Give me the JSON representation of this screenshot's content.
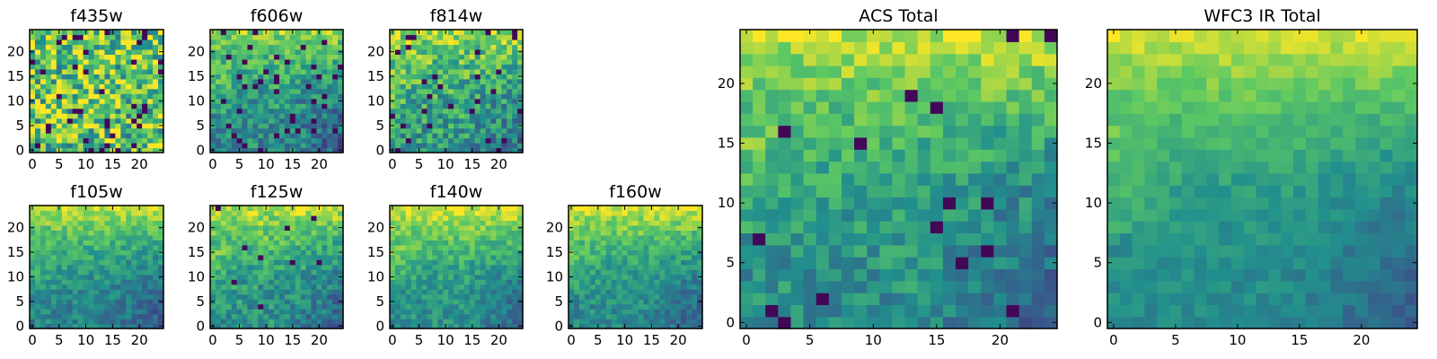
{
  "figure": {
    "colormap": [
      "#440154",
      "#3b528b",
      "#21908d",
      "#5dc963",
      "#fde725"
    ]
  },
  "chart_data": [
    {
      "id": "f435w",
      "type": "heatmap",
      "title": "f435w",
      "grid": [
        25,
        25
      ],
      "xlim": [
        0,
        24
      ],
      "ylim": [
        0,
        24
      ],
      "xticks": [
        "0",
        "5",
        "10",
        "15",
        "20"
      ],
      "yticks": [
        "0",
        "5",
        "10",
        "15",
        "20"
      ],
      "pattern": "noisy",
      "base": 0.72,
      "top_boost": 0.05,
      "noise": 0.35,
      "dark_fraction": 0.06,
      "seed": 11
    },
    {
      "id": "f606w",
      "type": "heatmap",
      "title": "f606w",
      "grid": [
        25,
        25
      ],
      "xlim": [
        0,
        24
      ],
      "ylim": [
        0,
        24
      ],
      "xticks": [
        "0",
        "5",
        "10",
        "15",
        "20"
      ],
      "yticks": [
        "0",
        "5",
        "10",
        "15",
        "20"
      ],
      "pattern": "gradient",
      "base": 0.48,
      "top_boost": 0.35,
      "noise": 0.18,
      "dark_fraction": 0.05,
      "seed": 23
    },
    {
      "id": "f814w",
      "type": "heatmap",
      "title": "f814w",
      "grid": [
        25,
        25
      ],
      "xlim": [
        0,
        24
      ],
      "ylim": [
        0,
        24
      ],
      "xticks": [
        "0",
        "5",
        "10",
        "15",
        "20"
      ],
      "yticks": [
        "0",
        "5",
        "10",
        "15",
        "20"
      ],
      "pattern": "gradient",
      "base": 0.55,
      "top_boost": 0.3,
      "noise": 0.22,
      "dark_fraction": 0.04,
      "seed": 37
    },
    {
      "id": "f105w",
      "type": "heatmap",
      "title": "f105w",
      "grid": [
        25,
        25
      ],
      "xlim": [
        0,
        24
      ],
      "ylim": [
        0,
        24
      ],
      "xticks": [
        "0",
        "5",
        "10",
        "15",
        "20"
      ],
      "yticks": [
        "0",
        "5",
        "10",
        "15",
        "20"
      ],
      "pattern": "gradient",
      "base": 0.45,
      "top_boost": 0.45,
      "noise": 0.12,
      "dark_fraction": 0.0,
      "seed": 41
    },
    {
      "id": "f125w",
      "type": "heatmap",
      "title": "f125w",
      "grid": [
        25,
        25
      ],
      "xlim": [
        0,
        24
      ],
      "ylim": [
        0,
        24
      ],
      "xticks": [
        "0",
        "5",
        "10",
        "15",
        "20"
      ],
      "yticks": [
        "0",
        "5",
        "10",
        "15",
        "20"
      ],
      "pattern": "gradient",
      "base": 0.5,
      "top_boost": 0.4,
      "noise": 0.15,
      "dark_fraction": 0.02,
      "seed": 53
    },
    {
      "id": "f140w",
      "type": "heatmap",
      "title": "f140w",
      "grid": [
        25,
        25
      ],
      "xlim": [
        0,
        24
      ],
      "ylim": [
        0,
        24
      ],
      "xticks": [
        "0",
        "5",
        "10",
        "15",
        "20"
      ],
      "yticks": [
        "0",
        "5",
        "10",
        "15",
        "20"
      ],
      "pattern": "gradient",
      "base": 0.5,
      "top_boost": 0.45,
      "noise": 0.12,
      "dark_fraction": 0.0,
      "seed": 67
    },
    {
      "id": "f160w",
      "type": "heatmap",
      "title": "f160w",
      "grid": [
        25,
        25
      ],
      "xlim": [
        0,
        24
      ],
      "ylim": [
        0,
        24
      ],
      "xticks": [
        "0",
        "5",
        "10",
        "15",
        "20"
      ],
      "yticks": [
        "0",
        "5",
        "10",
        "15",
        "20"
      ],
      "pattern": "gradient",
      "base": 0.48,
      "top_boost": 0.45,
      "noise": 0.12,
      "dark_fraction": 0.0,
      "seed": 79
    },
    {
      "id": "acs-total",
      "type": "heatmap",
      "title": "ACS Total",
      "grid": [
        25,
        25
      ],
      "xlim": [
        0,
        24
      ],
      "ylim": [
        0,
        24
      ],
      "xticks": [
        "0",
        "5",
        "10",
        "15",
        "20"
      ],
      "yticks": [
        "0",
        "5",
        "10",
        "15",
        "20"
      ],
      "pattern": "gradient",
      "base": 0.5,
      "top_boost": 0.42,
      "noise": 0.14,
      "dark_fraction": 0.03,
      "seed": 91
    },
    {
      "id": "wfc3-ir-total",
      "type": "heatmap",
      "title": "WFC3 IR Total",
      "grid": [
        25,
        25
      ],
      "xlim": [
        0,
        24
      ],
      "ylim": [
        0,
        24
      ],
      "xticks": [
        "0",
        "5",
        "10",
        "15",
        "20"
      ],
      "yticks": [
        "0",
        "5",
        "10",
        "15",
        "20"
      ],
      "pattern": "gradient",
      "base": 0.48,
      "top_boost": 0.45,
      "noise": 0.07,
      "dark_fraction": 0.0,
      "seed": 97
    }
  ]
}
